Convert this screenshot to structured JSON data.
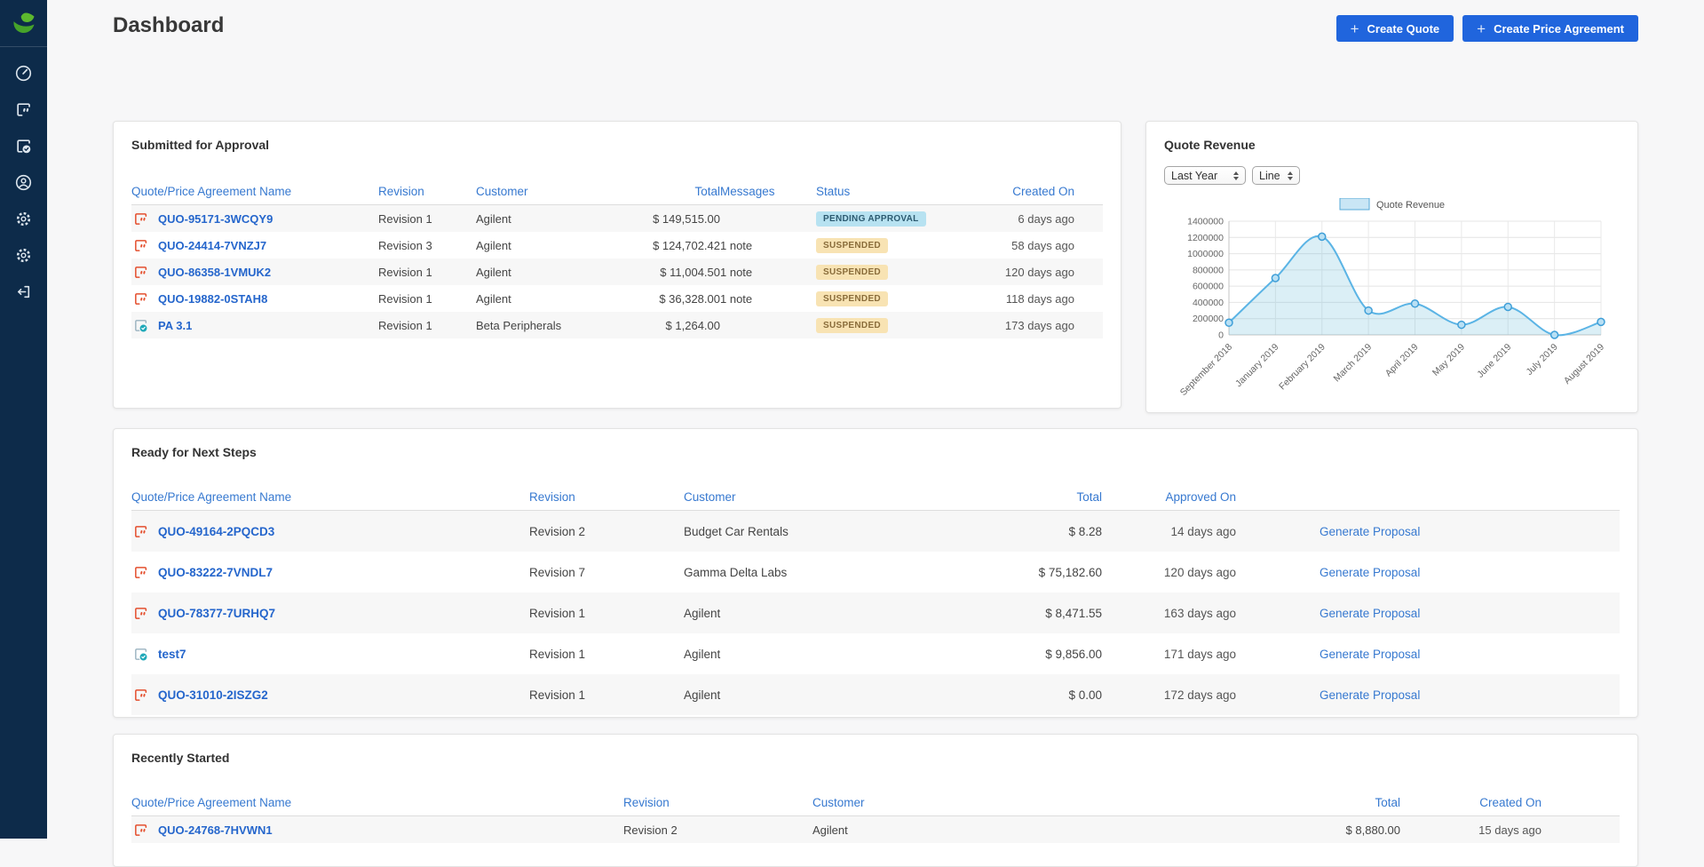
{
  "colors": {
    "sidebar_bg": "#0d2b4a",
    "accent_blue": "#2065dd",
    "link_blue": "#3779d0",
    "name_link_blue": "#2566cc",
    "quote_icon_orange": "#e4502f",
    "pa_icon_teal": "#1fa8b8",
    "chart_line": "#5bb4e5",
    "badge_pending_bg": "#b7e2f1",
    "badge_suspended_bg": "#f8e3b3"
  },
  "sidebar": {
    "items": [
      {
        "label": "dashboard",
        "icon": "gauge-icon"
      },
      {
        "label": "quotes",
        "icon": "quote-document-icon"
      },
      {
        "label": "price-agreements",
        "icon": "document-check-icon"
      },
      {
        "label": "account",
        "icon": "user-icon"
      },
      {
        "label": "settings",
        "icon": "gear-icon"
      },
      {
        "label": "admin-settings",
        "icon": "gear-icon"
      },
      {
        "label": "logout",
        "icon": "logout-icon"
      }
    ]
  },
  "header": {
    "title": "Dashboard",
    "plus": "+",
    "create_quote_label": "Create Quote",
    "create_price_agreement_label": "Create Price Agreement"
  },
  "submitted": {
    "title": "Submitted for Approval",
    "columns": [
      "Quote/Price Agreement Name",
      "Revision",
      "Customer",
      "Total",
      "Messages",
      "Status",
      "Created On"
    ],
    "rows": [
      {
        "name": "QUO-95171-3WCQY9",
        "type": "quote",
        "revision": "Revision 1",
        "customer": "Agilent",
        "total": "$ 149,515.00",
        "messages": "",
        "status": "PENDING APPROVAL",
        "created": "6 days ago"
      },
      {
        "name": "QUO-24414-7VNZJ7",
        "type": "quote",
        "revision": "Revision 3",
        "customer": "Agilent",
        "total": "$ 124,702.42",
        "messages": "1 note",
        "status": "SUSPENDED",
        "created": "58 days ago"
      },
      {
        "name": "QUO-86358-1VMUK2",
        "type": "quote",
        "revision": "Revision 1",
        "customer": "Agilent",
        "total": "$ 11,004.50",
        "messages": "1 note",
        "status": "SUSPENDED",
        "created": "120 days ago"
      },
      {
        "name": "QUO-19882-0STAH8",
        "type": "quote",
        "revision": "Revision 1",
        "customer": "Agilent",
        "total": "$ 36,328.00",
        "messages": "1 note",
        "status": "SUSPENDED",
        "created": "118 days ago"
      },
      {
        "name": "PA 3.1",
        "type": "price-agreement",
        "revision": "Revision 1",
        "customer": "Beta Peripherals",
        "total": "$ 1,264.00",
        "messages": "",
        "status": "SUSPENDED",
        "created": "173 days ago"
      }
    ]
  },
  "quote_revenue": {
    "title": "Quote Revenue",
    "range_select_value": "Last Year",
    "type_select_value": "Line"
  },
  "chart_data": {
    "type": "line",
    "title": "Quote Revenue",
    "legend": "Quote Revenue",
    "legend_position": "top",
    "grid": true,
    "smooth": true,
    "categories": [
      "September 2018",
      "January 2019",
      "February 2019",
      "March 2019",
      "April 2019",
      "May 2019",
      "June 2019",
      "July 2019",
      "August 2019"
    ],
    "values": [
      150000,
      700000,
      1210000,
      300000,
      385000,
      125000,
      345000,
      0,
      160000
    ],
    "xlabel": "",
    "ylabel": "",
    "ylim": [
      0,
      1400000
    ],
    "ytick_step": 200000
  },
  "ready": {
    "title": "Ready for Next Steps",
    "columns": [
      "Quote/Price Agreement Name",
      "Revision",
      "Customer",
      "Total",
      "Approved On"
    ],
    "action_label": "Generate Proposal",
    "rows": [
      {
        "name": "QUO-49164-2PQCD3",
        "type": "quote",
        "revision": "Revision 2",
        "customer": "Budget Car Rentals",
        "total": "$ 8.28",
        "approved": "14 days ago"
      },
      {
        "name": "QUO-83222-7VNDL7",
        "type": "quote",
        "revision": "Revision 7",
        "customer": "Gamma Delta Labs",
        "total": "$ 75,182.60",
        "approved": "120 days ago"
      },
      {
        "name": "QUO-78377-7URHQ7",
        "type": "quote",
        "revision": "Revision 1",
        "customer": "Agilent",
        "total": "$ 8,471.55",
        "approved": "163 days ago"
      },
      {
        "name": "test7",
        "type": "price-agreement",
        "revision": "Revision 1",
        "customer": "Agilent",
        "total": "$ 9,856.00",
        "approved": "171 days ago"
      },
      {
        "name": "QUO-31010-2ISZG2",
        "type": "quote",
        "revision": "Revision 1",
        "customer": "Agilent",
        "total": "$ 0.00",
        "approved": "172 days ago"
      }
    ]
  },
  "recent": {
    "title": "Recently Started",
    "columns": [
      "Quote/Price Agreement Name",
      "Revision",
      "Customer",
      "Total",
      "Created On"
    ],
    "rows": [
      {
        "name": "QUO-24768-7HVWN1",
        "type": "quote",
        "revision": "Revision 2",
        "customer": "Agilent",
        "total": "$ 8,880.00",
        "created": "15 days ago"
      }
    ]
  }
}
